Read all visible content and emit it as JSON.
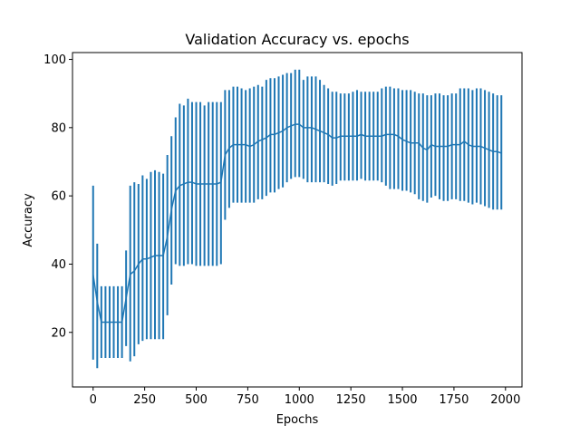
{
  "chart_data": {
    "type": "line",
    "title": "Validation Accuracy vs. epochs",
    "xlabel": "Epochs",
    "ylabel": "Accuracy",
    "xlim": [
      -100,
      2080
    ],
    "ylim": [
      4,
      102
    ],
    "xticks": [
      0,
      250,
      500,
      750,
      1000,
      1250,
      1500,
      1750,
      2000
    ],
    "yticks": [
      20,
      40,
      60,
      80,
      100
    ],
    "series_color": "#1f77b4",
    "grid": false,
    "legend": "none",
    "x": [
      0,
      20,
      40,
      60,
      80,
      100,
      120,
      140,
      160,
      180,
      200,
      220,
      240,
      260,
      280,
      300,
      320,
      340,
      360,
      380,
      400,
      420,
      440,
      460,
      480,
      500,
      520,
      540,
      560,
      580,
      600,
      620,
      640,
      660,
      680,
      700,
      720,
      740,
      760,
      780,
      800,
      820,
      840,
      860,
      880,
      900,
      920,
      940,
      960,
      980,
      1000,
      1020,
      1040,
      1060,
      1080,
      1100,
      1120,
      1140,
      1160,
      1180,
      1200,
      1220,
      1240,
      1260,
      1280,
      1300,
      1320,
      1340,
      1360,
      1380,
      1400,
      1420,
      1440,
      1460,
      1480,
      1500,
      1520,
      1540,
      1560,
      1580,
      1600,
      1620,
      1640,
      1660,
      1680,
      1700,
      1720,
      1740,
      1760,
      1780,
      1800,
      1820,
      1840,
      1860,
      1880,
      1900,
      1920,
      1940,
      1960,
      1980
    ],
    "mean": [
      37,
      29,
      23,
      23,
      23,
      23,
      23,
      23,
      30,
      37,
      38,
      40,
      41.5,
      41.5,
      42,
      42.5,
      42.5,
      42.5,
      48,
      56,
      61.5,
      63,
      63.5,
      64,
      64,
      63.5,
      63.5,
      63.5,
      63.5,
      63.5,
      63.5,
      64,
      72,
      74,
      75,
      75,
      75,
      75,
      74.5,
      75,
      76,
      76.5,
      77,
      78,
      78,
      78.5,
      79,
      80,
      80.5,
      81,
      81,
      80,
      80,
      80,
      79.5,
      79,
      78.5,
      78,
      77,
      77,
      77.5,
      77.5,
      77.5,
      77.5,
      77.5,
      78,
      77.5,
      77.5,
      77.5,
      77.5,
      77.5,
      78,
      78,
      78,
      77.5,
      76.5,
      76,
      75.5,
      75.5,
      75.5,
      74,
      73.5,
      75,
      74.5,
      74.5,
      74.5,
      74.5,
      75,
      75,
      75,
      76,
      75,
      74.5,
      74.5,
      74.5,
      74,
      73.5,
      73,
      73,
      72.5
    ],
    "upper": [
      63,
      46,
      33.5,
      33.5,
      33.5,
      33.5,
      33.5,
      33.5,
      44,
      63,
      64,
      63.5,
      66,
      65,
      67,
      67.5,
      67,
      66.5,
      72,
      77.5,
      83,
      87,
      86.5,
      88.5,
      87.5,
      87.5,
      87.5,
      86.5,
      87.5,
      87.5,
      87.5,
      87.5,
      91,
      91,
      92,
      92,
      91.5,
      91,
      91.5,
      92,
      92.5,
      92,
      94,
      94.5,
      94.5,
      95,
      95.5,
      96,
      96,
      97,
      97,
      94,
      95,
      95,
      95,
      94,
      92.5,
      91.5,
      90.5,
      90.5,
      90,
      90,
      90,
      90.5,
      91,
      90.5,
      90.5,
      90.5,
      90.5,
      90.5,
      91.5,
      92,
      92,
      91.5,
      91.5,
      91,
      91,
      91,
      90.5,
      90,
      90,
      89.5,
      89.5,
      90,
      90,
      89.5,
      89.5,
      90,
      90,
      91.5,
      91.5,
      91.5,
      91,
      91.5,
      91.5,
      91,
      90.5,
      90,
      89.5,
      89.5
    ],
    "lower": [
      12,
      9.5,
      12.5,
      12.5,
      12.5,
      12.5,
      12.5,
      12.5,
      16,
      11.5,
      13,
      16.5,
      17.5,
      18,
      18,
      18,
      18,
      18,
      25,
      34,
      40,
      39.5,
      39.5,
      40,
      40,
      39.5,
      39.5,
      39.5,
      39.5,
      39.5,
      39.5,
      40,
      53,
      56.5,
      58,
      58,
      58,
      58,
      58,
      58,
      59,
      59,
      60,
      61,
      61,
      62,
      62.5,
      64,
      65,
      65.5,
      65.5,
      65,
      64,
      64,
      64,
      64,
      64,
      63.5,
      63,
      63.5,
      64.5,
      64.5,
      64.5,
      64.5,
      64.5,
      65,
      64.5,
      64.5,
      64.5,
      64.5,
      64,
      63,
      62,
      62,
      62,
      61.5,
      61.5,
      61,
      60.5,
      59,
      58.5,
      58,
      59.5,
      60,
      59,
      58.5,
      58.5,
      59,
      59,
      58.5,
      58.5,
      58,
      57.5,
      58,
      57.5,
      57,
      56.5,
      56,
      56,
      56
    ]
  }
}
